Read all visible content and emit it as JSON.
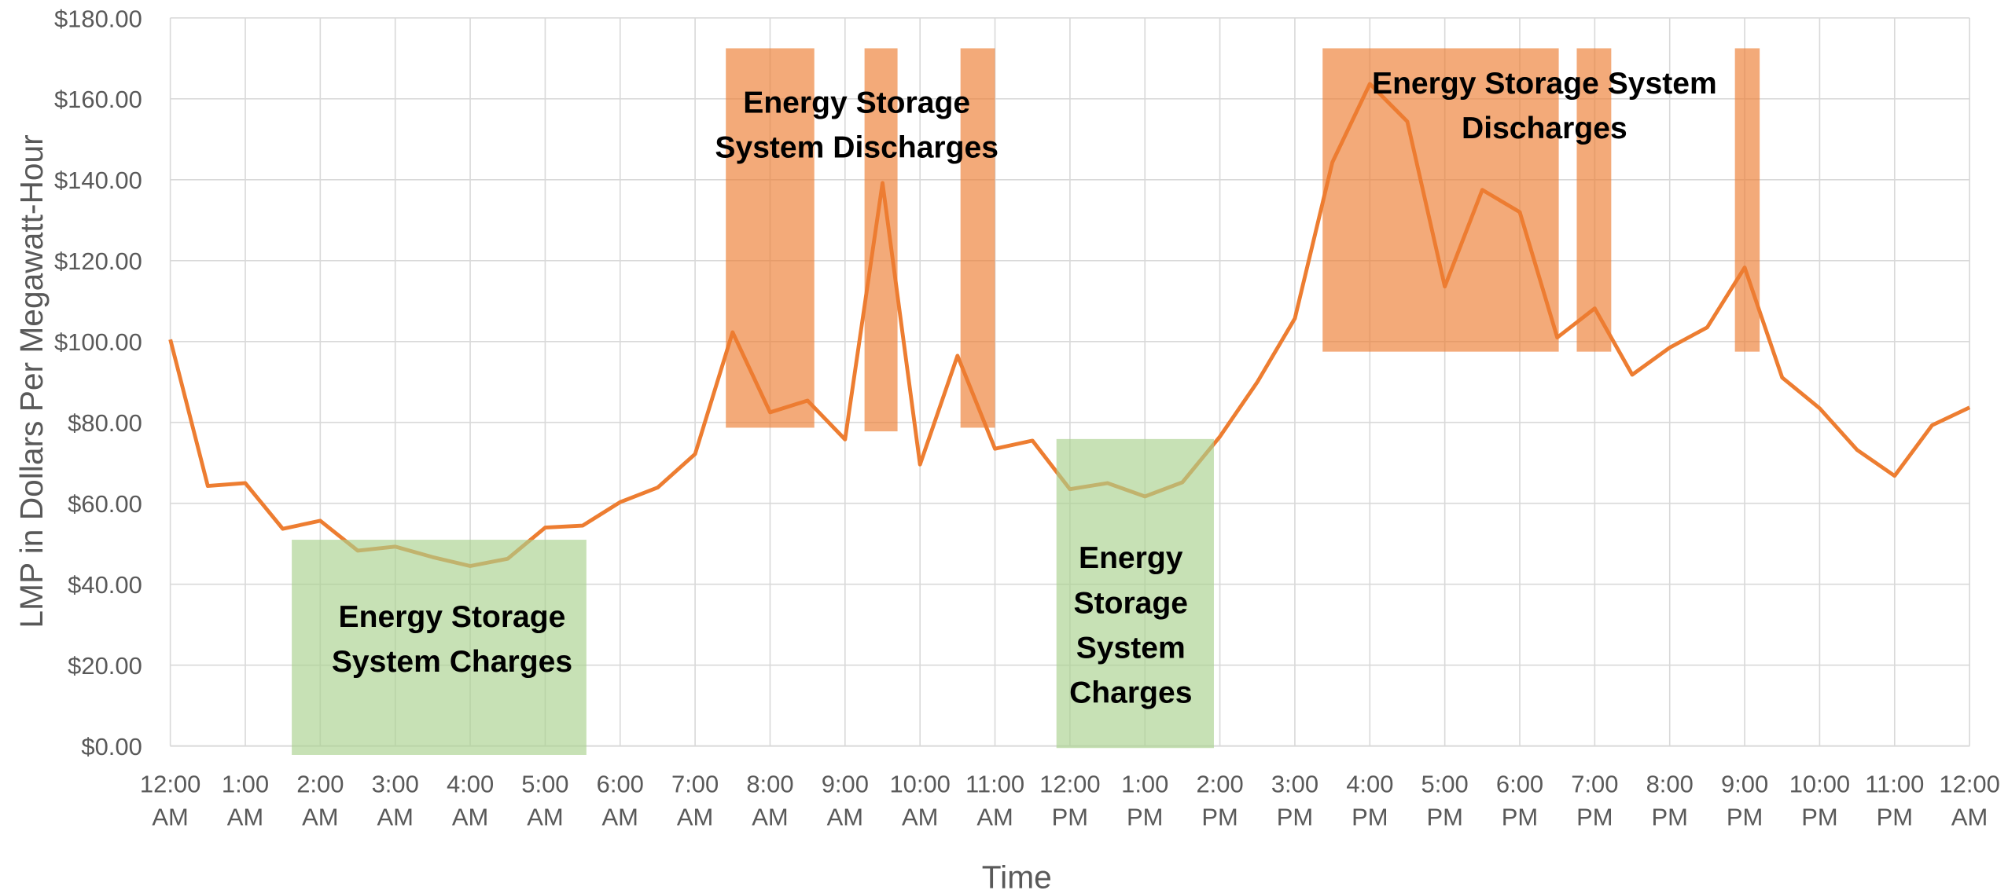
{
  "chart_data": {
    "type": "line",
    "y_axis_label": "LMP in Dollars Per Megawatt-Hour",
    "x_axis_label": "Time",
    "x": [
      0,
      0.5,
      1,
      1.5,
      2,
      2.5,
      3,
      3.5,
      4,
      4.5,
      5,
      5.5,
      6,
      6.5,
      7,
      7.5,
      8,
      8.5,
      9,
      9.5,
      10,
      10.5,
      11,
      11.5,
      12,
      12.5,
      13,
      13.5,
      14,
      14.5,
      15,
      15.5,
      16,
      16.5,
      17,
      17.5,
      18,
      18.5,
      19,
      19.5,
      20,
      20.5,
      21,
      21.5,
      22,
      22.5,
      23,
      23.5,
      24
    ],
    "series": [
      {
        "name": "LMP",
        "color": "#ed7d31",
        "values": [
          100.5,
          64.3,
          65,
          53.7,
          55.7,
          48.3,
          49.3,
          46.7,
          44.5,
          46.3,
          54,
          54.5,
          60.3,
          63.9,
          72.2,
          102.3,
          82.5,
          85.4,
          75.8,
          139.2,
          69.6,
          96.5,
          73.5,
          75.5,
          63.5,
          65,
          61.7,
          65.2,
          76.5,
          90,
          105.7,
          144.3,
          163.7,
          154.4,
          113.6,
          137.5,
          132,
          101,
          108.2,
          91.8,
          98.5,
          103.5,
          118.3,
          91.1,
          83.5,
          73.2,
          66.8,
          79.3,
          83.7
        ]
      }
    ],
    "xlim": [
      0,
      24
    ],
    "xticks": [
      {
        "value": 0,
        "label": "12:00 AM"
      },
      {
        "value": 1,
        "label": "1:00 AM"
      },
      {
        "value": 2,
        "label": "2:00 AM"
      },
      {
        "value": 3,
        "label": "3:00 AM"
      },
      {
        "value": 4,
        "label": "4:00 AM"
      },
      {
        "value": 5,
        "label": "5:00 AM"
      },
      {
        "value": 6,
        "label": "6:00 AM"
      },
      {
        "value": 7,
        "label": "7:00 AM"
      },
      {
        "value": 8,
        "label": "8:00 AM"
      },
      {
        "value": 9,
        "label": "9:00 AM"
      },
      {
        "value": 10,
        "label": "10:00 AM"
      },
      {
        "value": 11,
        "label": "11:00 AM"
      },
      {
        "value": 12,
        "label": "12:00 PM"
      },
      {
        "value": 13,
        "label": "1:00 PM"
      },
      {
        "value": 14,
        "label": "2:00 PM"
      },
      {
        "value": 15,
        "label": "3:00 PM"
      },
      {
        "value": 16,
        "label": "4:00 PM"
      },
      {
        "value": 17,
        "label": "5:00 PM"
      },
      {
        "value": 18,
        "label": "6:00 PM"
      },
      {
        "value": 19,
        "label": "7:00 PM"
      },
      {
        "value": 20,
        "label": "8:00 PM"
      },
      {
        "value": 21,
        "label": "9:00 PM"
      },
      {
        "value": 22,
        "label": "10:00 PM"
      },
      {
        "value": 23,
        "label": "11:00 PM"
      },
      {
        "value": 24,
        "label": "12:00 AM"
      }
    ],
    "ylim": [
      0,
      180
    ],
    "yticks": [
      {
        "value": 0,
        "label": "$0.00"
      },
      {
        "value": 20,
        "label": "$20.00"
      },
      {
        "value": 40,
        "label": "$40.00"
      },
      {
        "value": 60,
        "label": "$60.00"
      },
      {
        "value": 80,
        "label": "$80.00"
      },
      {
        "value": 100,
        "label": "$100.00"
      },
      {
        "value": 120,
        "label": "$120.00"
      },
      {
        "value": 140,
        "label": "$140.00"
      },
      {
        "value": 160,
        "label": "$160.00"
      },
      {
        "value": 180,
        "label": "$180.00"
      }
    ],
    "grid": true,
    "regions": [
      {
        "x": [
          1.62,
          5.55
        ],
        "y": [
          -2.2,
          51
        ],
        "color": "#a9d18e"
      },
      {
        "x": [
          11.82,
          13.92
        ],
        "y": [
          -0.5,
          75.9
        ],
        "color": "#a9d18e"
      },
      {
        "x": [
          7.41,
          8.59
        ],
        "y": [
          78.7,
          172.5
        ],
        "color": "#ed7d31"
      },
      {
        "x": [
          9.26,
          9.7
        ],
        "y": [
          77.8,
          172.5
        ],
        "color": "#ed7d31"
      },
      {
        "x": [
          10.54,
          11.0
        ],
        "y": [
          78.7,
          172.5
        ],
        "color": "#ed7d31"
      },
      {
        "x": [
          15.37,
          18.52
        ],
        "y": [
          97.5,
          172.5
        ],
        "color": "#ed7d31"
      },
      {
        "x": [
          18.76,
          19.22
        ],
        "y": [
          97.5,
          172.5
        ],
        "color": "#ed7d31"
      },
      {
        "x": [
          20.87,
          21.2
        ],
        "y": [
          97.5,
          172.5
        ],
        "color": "#ed7d31"
      }
    ],
    "annotations": [
      {
        "lines": [
          "Energy Storage",
          "System Charges"
        ]
      },
      {
        "lines": [
          "Energy",
          "Storage",
          "System",
          "Charges"
        ]
      },
      {
        "lines": [
          "Energy Storage",
          "System Discharges"
        ]
      },
      {
        "lines": [
          "Energy Storage System",
          "Discharges"
        ]
      }
    ]
  }
}
